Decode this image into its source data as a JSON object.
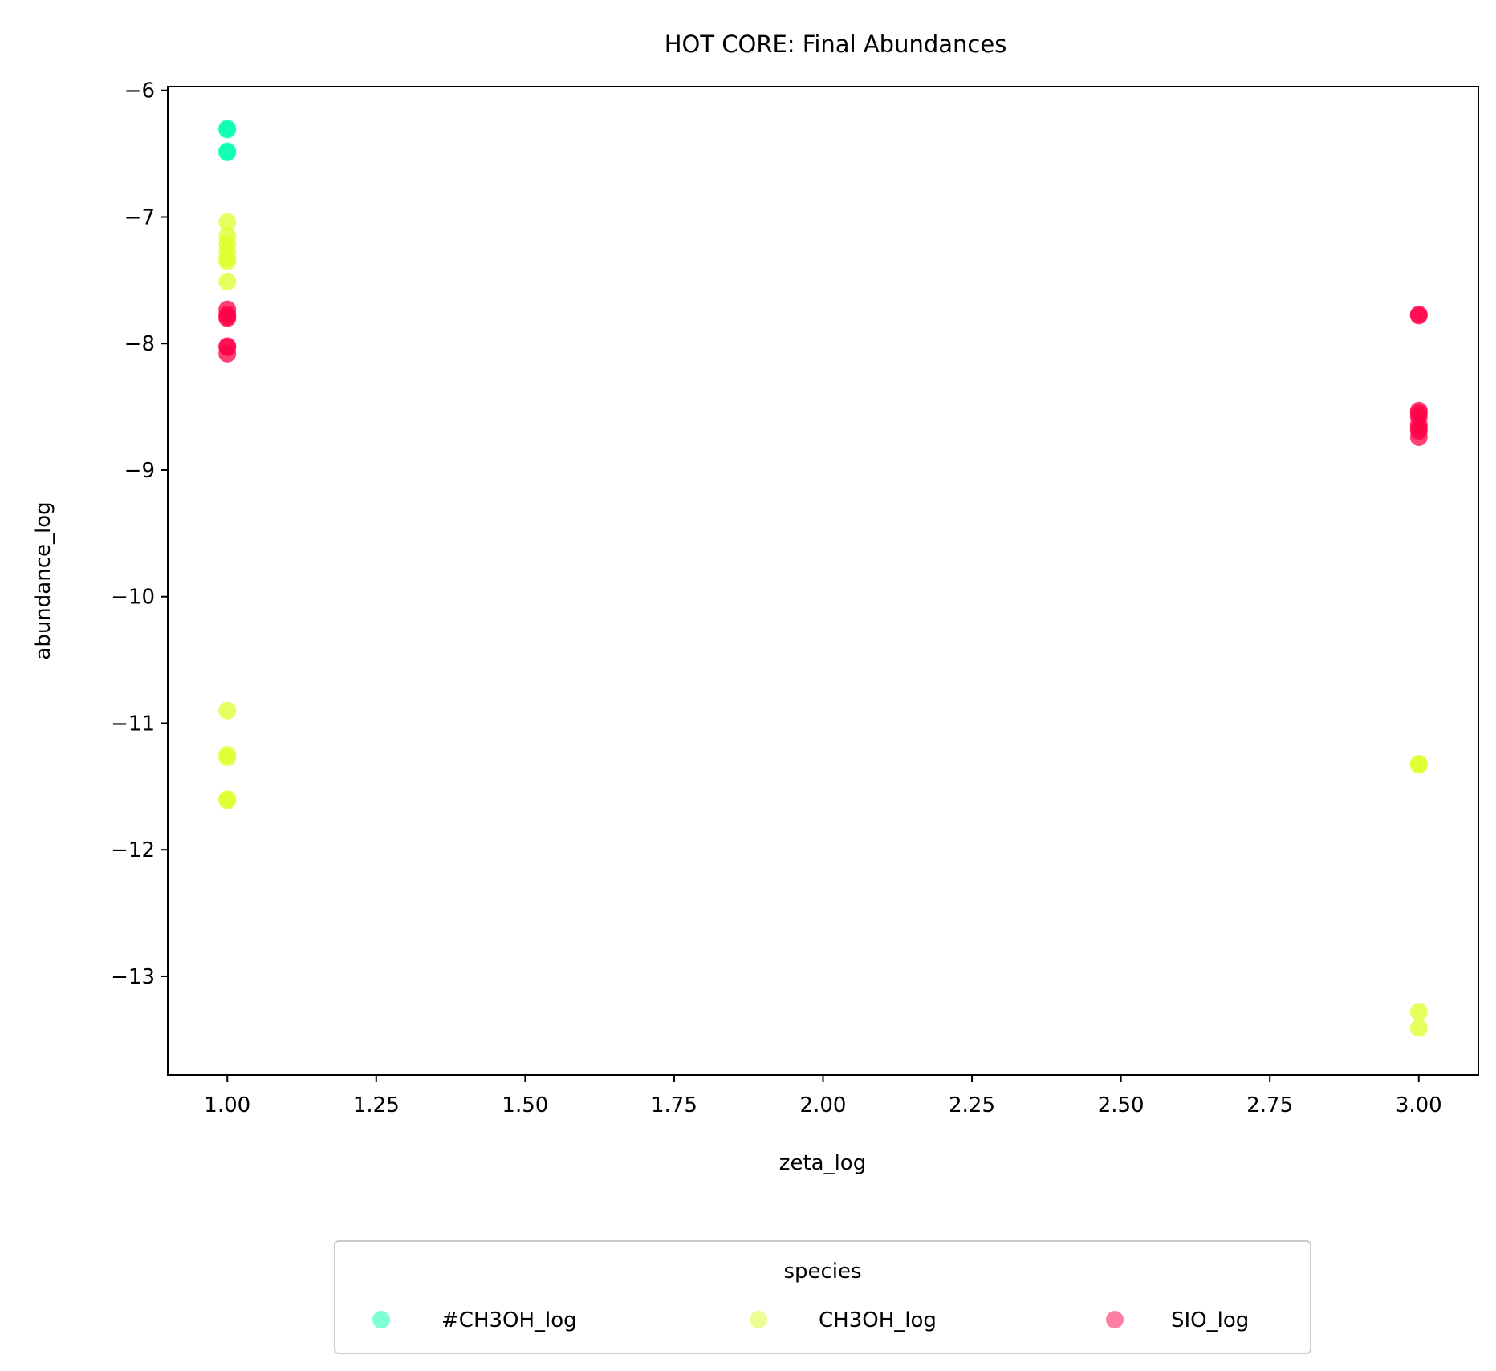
{
  "chart_data": {
    "type": "scatter",
    "title": "HOT CORE: Final Abundances",
    "xlabel": "zeta_log",
    "ylabel": "abundance_log",
    "xlim": [
      0.9,
      3.1
    ],
    "ylim": [
      -13.78,
      -5.97
    ],
    "x_ticks": [
      1.0,
      1.25,
      1.5,
      1.75,
      2.0,
      2.25,
      2.5,
      2.75,
      3.0
    ],
    "x_tick_labels": [
      "1.00",
      "1.25",
      "1.50",
      "1.75",
      "2.00",
      "2.25",
      "2.50",
      "2.75",
      "3.00"
    ],
    "y_ticks": [
      -6,
      -7,
      -8,
      -9,
      -10,
      -11,
      -12,
      -13
    ],
    "y_tick_labels": [
      "−6",
      "−7",
      "−8",
      "−9",
      "−10",
      "−11",
      "−12",
      "−13"
    ],
    "grid": false,
    "legend": {
      "title": "species",
      "placement": "bottom-center, below axes",
      "columns": 3
    },
    "series": [
      {
        "name": "#CH3OH_log",
        "color": "#00ffb0",
        "points": [
          [
            1,
            -6.3
          ],
          [
            1,
            -6.31
          ],
          [
            1,
            -6.48
          ],
          [
            1,
            -6.49
          ]
        ]
      },
      {
        "name": "CH3OH_log",
        "color": "#dcff2a",
        "points": [
          [
            1,
            -7.04
          ],
          [
            1,
            -7.15
          ],
          [
            1,
            -7.21
          ],
          [
            1,
            -7.27
          ],
          [
            1,
            -7.33
          ],
          [
            1,
            -7.35
          ],
          [
            1,
            -7.51
          ],
          [
            1,
            -10.9
          ],
          [
            1,
            -11.25
          ],
          [
            1,
            -11.27
          ],
          [
            1,
            -11.6
          ],
          [
            1,
            -11.61
          ],
          [
            3,
            -11.32
          ],
          [
            3,
            -11.33
          ],
          [
            3,
            -13.28
          ],
          [
            3,
            -13.41
          ]
        ]
      },
      {
        "name": "SIO_log",
        "color": "#ff0047",
        "points": [
          [
            1,
            -7.73
          ],
          [
            1,
            -7.77
          ],
          [
            1,
            -7.79
          ],
          [
            1,
            -7.8
          ],
          [
            1,
            -8.02
          ],
          [
            1,
            -8.03
          ],
          [
            1,
            -8.08
          ],
          [
            3,
            -7.77
          ],
          [
            3,
            -7.78
          ],
          [
            3,
            -8.53
          ],
          [
            3,
            -8.55
          ],
          [
            3,
            -8.58
          ],
          [
            3,
            -8.64
          ],
          [
            3,
            -8.67
          ],
          [
            3,
            -8.69
          ],
          [
            3,
            -8.74
          ]
        ]
      }
    ]
  }
}
